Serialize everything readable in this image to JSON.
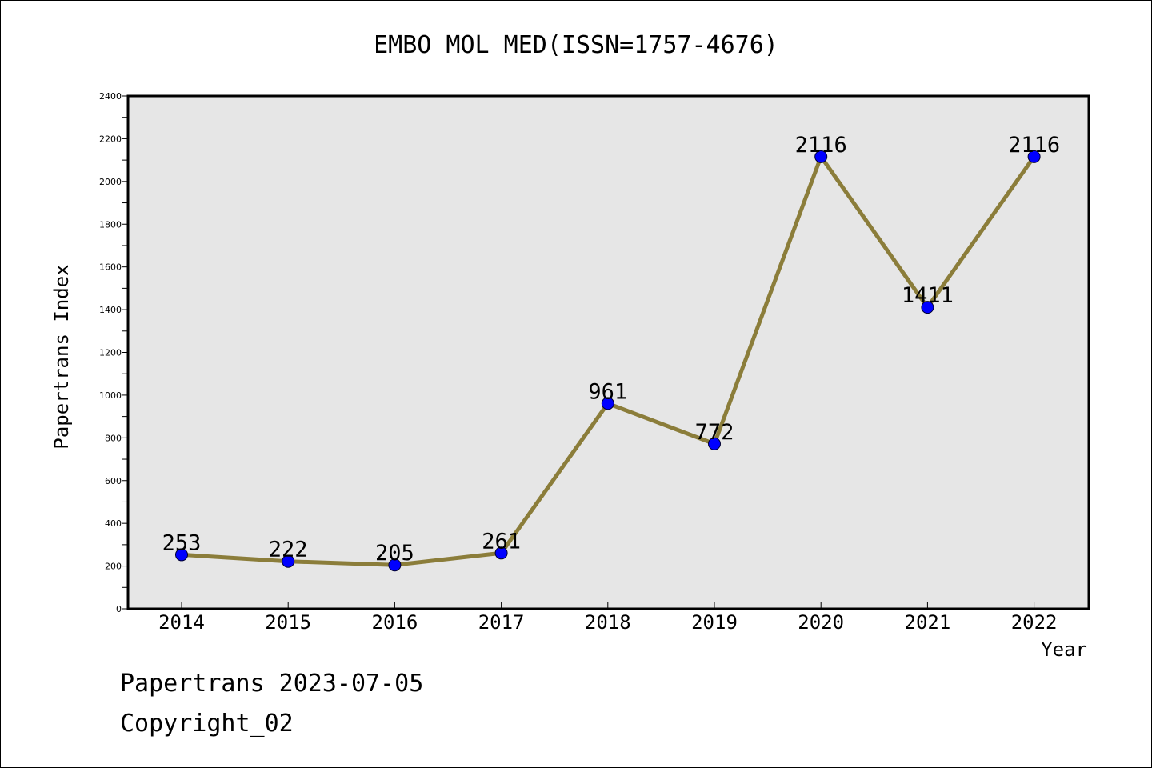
{
  "chart_data": {
    "type": "line",
    "title": "EMBO MOL MED(ISSN=1757-4676)",
    "xlabel": "Year",
    "ylabel": "Papertrans Index",
    "x": [
      "2014",
      "2015",
      "2016",
      "2017",
      "2018",
      "2019",
      "2020",
      "2021",
      "2022"
    ],
    "series": [
      {
        "values": [
          253,
          222,
          205,
          261,
          961,
          772,
          2116,
          1411,
          2116
        ],
        "labels": [
          "253",
          "222",
          "205",
          "261",
          "961",
          "772",
          "2116",
          "1411",
          "2116"
        ]
      }
    ],
    "ylim": [
      0,
      2400
    ],
    "y_ticks": [
      "0",
      "200",
      "400",
      "600",
      "800",
      "1000",
      "1200",
      "1400",
      "1600",
      "1800",
      "2000",
      "2200",
      "2400"
    ],
    "grid": false,
    "line_color": "#8b7d3a",
    "marker_color": "#0000ff",
    "plot_background": "#e6e6e6"
  },
  "footer": {
    "date_line": "Papertrans 2023-07-05",
    "copyright": "Copyright_02"
  }
}
